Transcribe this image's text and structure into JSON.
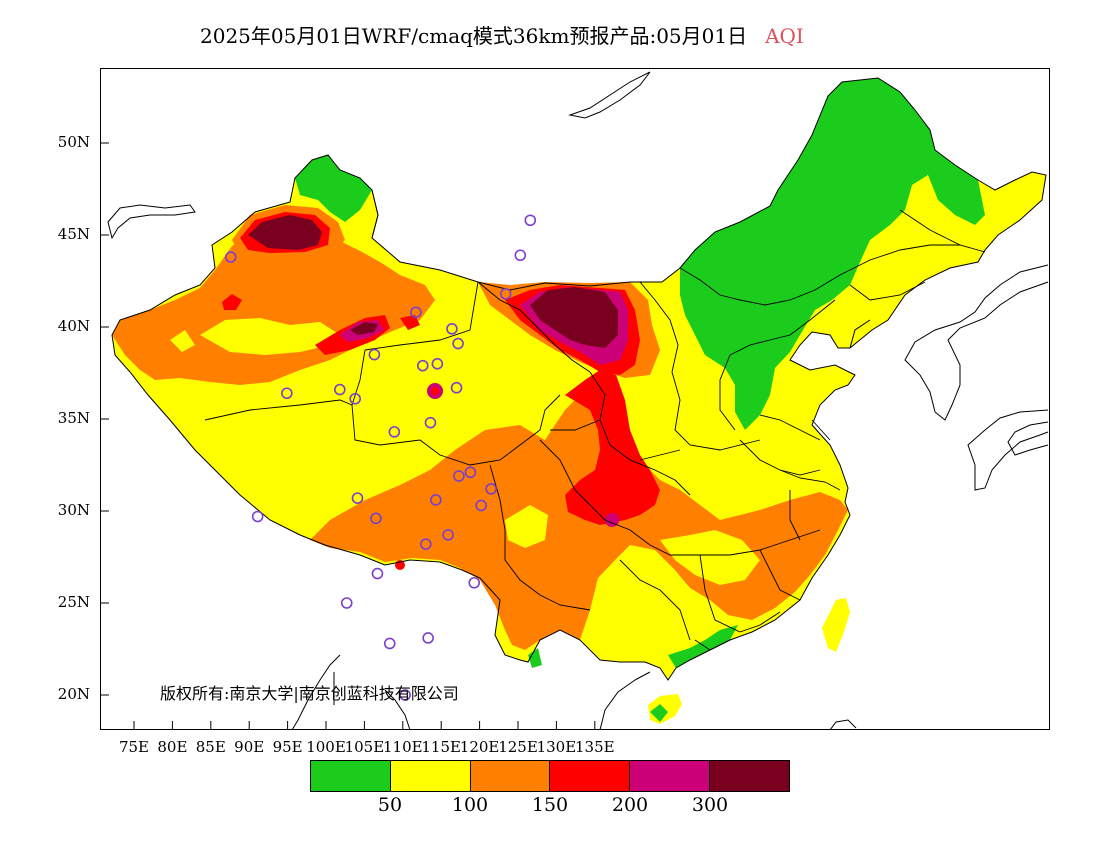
{
  "title": {
    "text": "2025年05月01日WRF/cmaq模式36km预报产品:05月01日",
    "variable": "AQI",
    "variable_color": "#e0505a"
  },
  "copyright": "版权所有:南京大学|南京创蓝科技有限公司",
  "map": {
    "lat_ticks": [
      {
        "label": "50N",
        "value": 50
      },
      {
        "label": "45N",
        "value": 45
      },
      {
        "label": "40N",
        "value": 40
      },
      {
        "label": "35N",
        "value": 35
      },
      {
        "label": "30N",
        "value": 30
      },
      {
        "label": "25N",
        "value": 25
      },
      {
        "label": "20N",
        "value": 20
      }
    ],
    "lon_ticks": [
      {
        "label": "75E",
        "value": 75
      },
      {
        "label": "80E",
        "value": 80
      },
      {
        "label": "85E",
        "value": 85
      },
      {
        "label": "90E",
        "value": 90
      },
      {
        "label": "95E",
        "value": 95
      },
      {
        "label": "100E",
        "value": 100
      },
      {
        "label": "105E",
        "value": 105
      },
      {
        "label": "110E",
        "value": 110
      },
      {
        "label": "115E",
        "value": 115
      },
      {
        "label": "120E",
        "value": 120
      },
      {
        "label": "125E",
        "value": 125
      },
      {
        "label": "130E",
        "value": 130
      },
      {
        "label": "135E",
        "value": 135
      }
    ],
    "colors": {
      "green": "#1ccc1c",
      "yellow": "#ffff00",
      "orange": "#ff7f00",
      "red": "#ff0000",
      "magenta": "#cc0077",
      "maroon": "#7a0020"
    },
    "stations": [
      {
        "lon": 87.6,
        "lat": 43.8
      },
      {
        "lon": 91.1,
        "lat": 29.7
      },
      {
        "lon": 94.9,
        "lat": 36.4
      },
      {
        "lon": 101.8,
        "lat": 36.6
      },
      {
        "lon": 103.8,
        "lat": 36.1
      },
      {
        "lon": 106.3,
        "lat": 38.5
      },
      {
        "lon": 104.1,
        "lat": 30.7
      },
      {
        "lon": 106.5,
        "lat": 29.6
      },
      {
        "lon": 102.7,
        "lat": 25.0
      },
      {
        "lon": 106.7,
        "lat": 26.6
      },
      {
        "lon": 108.9,
        "lat": 34.3
      },
      {
        "lon": 110.3,
        "lat": 20.0
      },
      {
        "lon": 108.3,
        "lat": 22.8
      },
      {
        "lon": 113.3,
        "lat": 23.1
      },
      {
        "lon": 113.0,
        "lat": 28.2
      },
      {
        "lon": 114.3,
        "lat": 30.6
      },
      {
        "lon": 115.9,
        "lat": 28.7
      },
      {
        "lon": 117.3,
        "lat": 31.9
      },
      {
        "lon": 118.8,
        "lat": 32.1
      },
      {
        "lon": 120.2,
        "lat": 30.3
      },
      {
        "lon": 121.5,
        "lat": 31.2
      },
      {
        "lon": 119.3,
        "lat": 26.1
      },
      {
        "lon": 113.6,
        "lat": 34.8
      },
      {
        "lon": 117.0,
        "lat": 36.7
      },
      {
        "lon": 112.6,
        "lat": 37.9
      },
      {
        "lon": 114.5,
        "lat": 38.0
      },
      {
        "lon": 116.4,
        "lat": 39.9
      },
      {
        "lon": 117.2,
        "lat": 39.1
      },
      {
        "lon": 111.7,
        "lat": 40.8
      },
      {
        "lon": 123.4,
        "lat": 41.8
      },
      {
        "lon": 125.3,
        "lat": 43.9
      },
      {
        "lon": 126.6,
        "lat": 45.8
      }
    ]
  },
  "legend": {
    "colors": [
      "#1ccc1c",
      "#ffff00",
      "#ff7f00",
      "#ff0000",
      "#cc0077",
      "#7a0020"
    ],
    "labels": [
      "50",
      "100",
      "150",
      "200",
      "300"
    ]
  }
}
